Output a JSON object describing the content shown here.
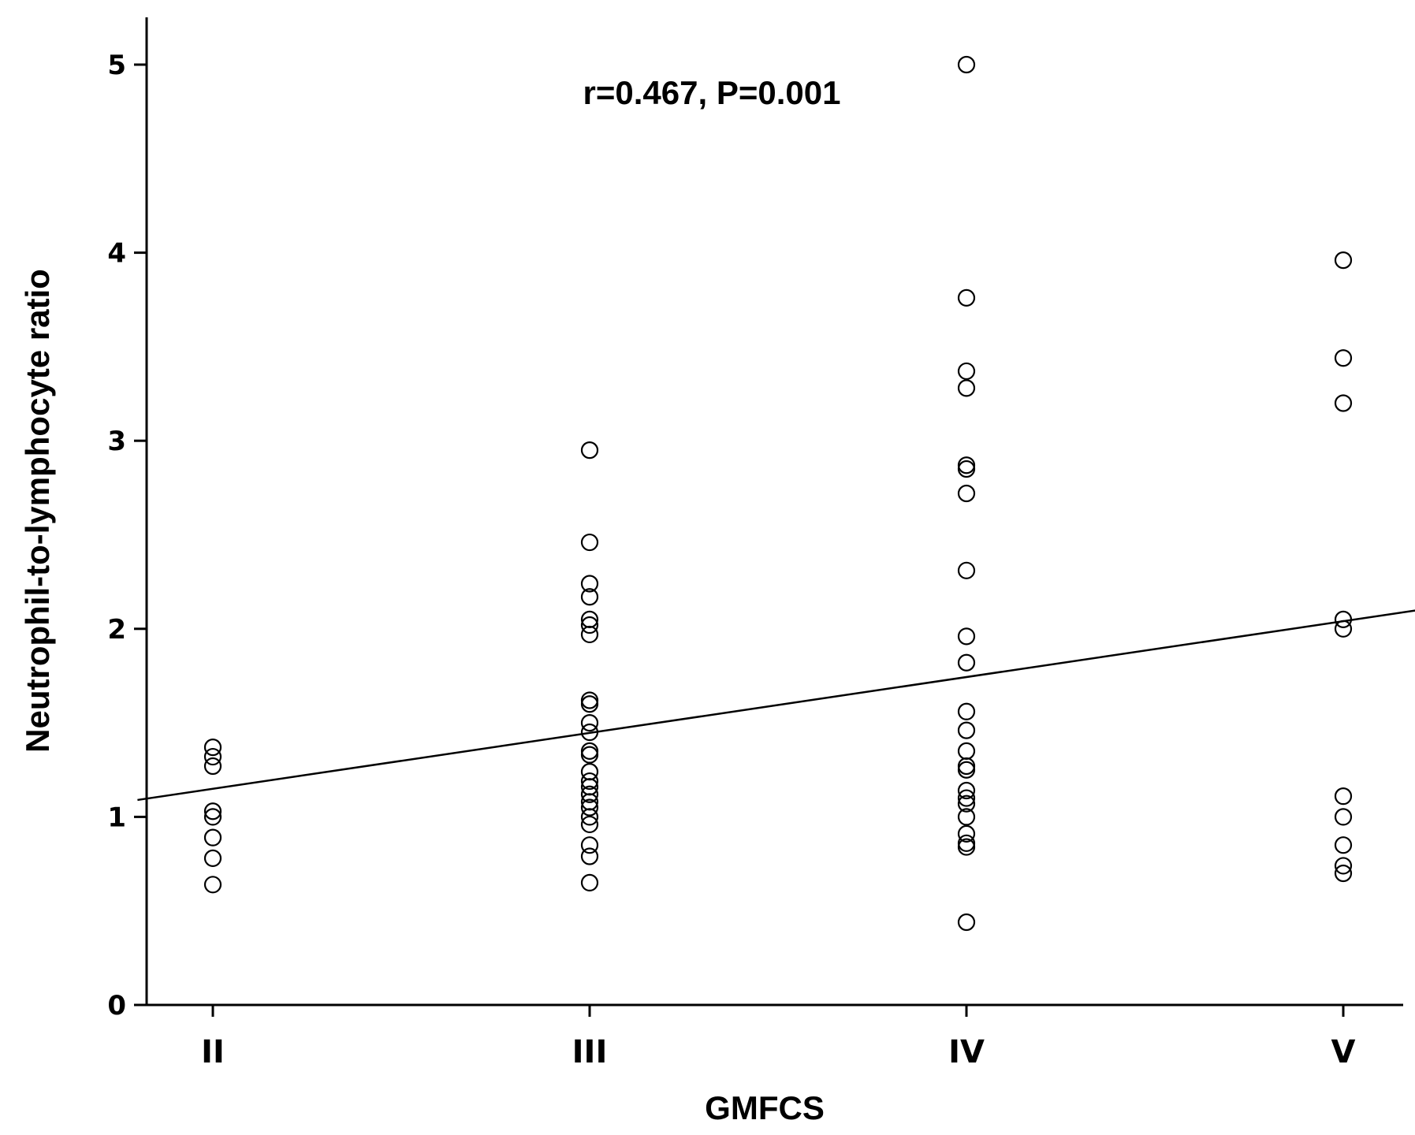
{
  "chart_data": {
    "type": "scatter",
    "title": "",
    "annotation": "r=0.467, P=0.001",
    "xlabel": "GMFCS",
    "ylabel": "Neutrophil-to-lymphocyte ratio",
    "categories": [
      "II",
      "III",
      "IV",
      "V"
    ],
    "ylim": [
      0,
      5.2
    ],
    "yticks": [
      0,
      1,
      2,
      3,
      4,
      5
    ],
    "grid": false,
    "series": [
      {
        "points": [
          {
            "x": "II",
            "y": 1.37
          },
          {
            "x": "II",
            "y": 1.32
          },
          {
            "x": "II",
            "y": 1.27
          },
          {
            "x": "II",
            "y": 1.03
          },
          {
            "x": "II",
            "y": 1.0
          },
          {
            "x": "II",
            "y": 0.89
          },
          {
            "x": "II",
            "y": 0.78
          },
          {
            "x": "II",
            "y": 0.64
          },
          {
            "x": "III",
            "y": 2.95
          },
          {
            "x": "III",
            "y": 2.46
          },
          {
            "x": "III",
            "y": 2.24
          },
          {
            "x": "III",
            "y": 2.17
          },
          {
            "x": "III",
            "y": 2.05
          },
          {
            "x": "III",
            "y": 2.02
          },
          {
            "x": "III",
            "y": 1.97
          },
          {
            "x": "III",
            "y": 1.62
          },
          {
            "x": "III",
            "y": 1.6
          },
          {
            "x": "III",
            "y": 1.5
          },
          {
            "x": "III",
            "y": 1.45
          },
          {
            "x": "III",
            "y": 1.35
          },
          {
            "x": "III",
            "y": 1.33
          },
          {
            "x": "III",
            "y": 1.24
          },
          {
            "x": "III",
            "y": 1.19
          },
          {
            "x": "III",
            "y": 1.16
          },
          {
            "x": "III",
            "y": 1.12
          },
          {
            "x": "III",
            "y": 1.08
          },
          {
            "x": "III",
            "y": 1.05
          },
          {
            "x": "III",
            "y": 1.0
          },
          {
            "x": "III",
            "y": 0.96
          },
          {
            "x": "III",
            "y": 0.85
          },
          {
            "x": "III",
            "y": 0.79
          },
          {
            "x": "III",
            "y": 0.65
          },
          {
            "x": "IV",
            "y": 5.0
          },
          {
            "x": "IV",
            "y": 3.76
          },
          {
            "x": "IV",
            "y": 3.37
          },
          {
            "x": "IV",
            "y": 3.28
          },
          {
            "x": "IV",
            "y": 2.87
          },
          {
            "x": "IV",
            "y": 2.85
          },
          {
            "x": "IV",
            "y": 2.72
          },
          {
            "x": "IV",
            "y": 2.31
          },
          {
            "x": "IV",
            "y": 1.96
          },
          {
            "x": "IV",
            "y": 1.82
          },
          {
            "x": "IV",
            "y": 1.56
          },
          {
            "x": "IV",
            "y": 1.46
          },
          {
            "x": "IV",
            "y": 1.35
          },
          {
            "x": "IV",
            "y": 1.27
          },
          {
            "x": "IV",
            "y": 1.25
          },
          {
            "x": "IV",
            "y": 1.14
          },
          {
            "x": "IV",
            "y": 1.1
          },
          {
            "x": "IV",
            "y": 1.07
          },
          {
            "x": "IV",
            "y": 1.0
          },
          {
            "x": "IV",
            "y": 0.91
          },
          {
            "x": "IV",
            "y": 0.86
          },
          {
            "x": "IV",
            "y": 0.84
          },
          {
            "x": "IV",
            "y": 0.44
          },
          {
            "x": "V",
            "y": 3.96
          },
          {
            "x": "V",
            "y": 3.44
          },
          {
            "x": "V",
            "y": 3.2
          },
          {
            "x": "V",
            "y": 2.05
          },
          {
            "x": "V",
            "y": 2.0
          },
          {
            "x": "V",
            "y": 1.11
          },
          {
            "x": "V",
            "y": 1.0
          },
          {
            "x": "V",
            "y": 0.85
          },
          {
            "x": "V",
            "y": 0.74
          },
          {
            "x": "V",
            "y": 0.7
          }
        ]
      }
    ],
    "fit_line": {
      "x_start": 0.8,
      "y_start": 1.09,
      "x_end": 4.2,
      "y_end": 2.1
    }
  }
}
